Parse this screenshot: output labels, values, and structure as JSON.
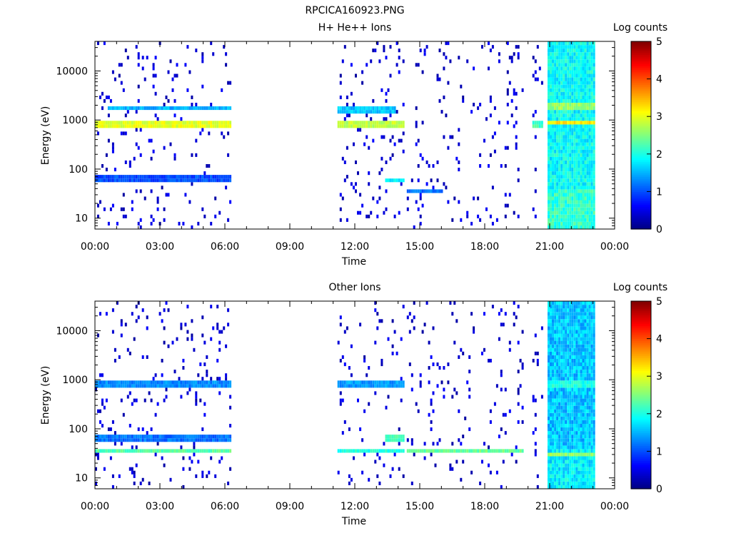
{
  "figure": {
    "title": "RPCICA160923.PNG"
  },
  "chart_data": [
    {
      "type": "heatmap",
      "title": "H+ He++ Ions",
      "xlabel": "Time",
      "ylabel": "Energy (eV)",
      "yscale": "log",
      "ylim": [
        6,
        40000
      ],
      "yticks": [
        10,
        100,
        1000,
        10000
      ],
      "ytick_labels": [
        "10",
        "100",
        "1000",
        "10000"
      ],
      "xlim_hours": [
        0,
        24
      ],
      "xticks_hours": [
        0,
        3,
        6,
        9,
        12,
        15,
        18,
        21,
        24
      ],
      "xtick_labels": [
        "00:00",
        "03:00",
        "06:00",
        "09:00",
        "12:00",
        "15:00",
        "18:00",
        "21:00",
        "00:00"
      ],
      "colorbar": {
        "label": "Log counts",
        "range": [
          0,
          5
        ],
        "ticks": [
          "0",
          "1",
          "2",
          "3",
          "4",
          "5"
        ]
      },
      "data_intervals_hours": [
        [
          0.0,
          6.3
        ],
        [
          11.2,
          14.3
        ],
        [
          14.4,
          19.8
        ],
        [
          20.2,
          20.7
        ],
        [
          20.9,
          23.1
        ]
      ],
      "features": [
        {
          "t": [
            0.0,
            6.3
          ],
          "energy_eV": 800,
          "log_counts": 3.0
        },
        {
          "t": [
            0.5,
            6.3
          ],
          "energy_eV": 1700,
          "log_counts": 1.5
        },
        {
          "t": [
            0.0,
            6.3
          ],
          "energy_eV": 65,
          "log_counts": 1.0
        },
        {
          "t": [
            11.2,
            14.3
          ],
          "energy_eV": 780,
          "log_counts": 2.8
        },
        {
          "t": [
            11.2,
            13.8
          ],
          "energy_eV": 1600,
          "log_counts": 1.6
        },
        {
          "t": [
            13.4,
            14.3
          ],
          "energy_eV": 60,
          "log_counts": 1.8
        },
        {
          "t": [
            14.4,
            16.0
          ],
          "energy_eV": 35,
          "log_counts": 1.2
        },
        {
          "t": [
            20.2,
            20.7
          ],
          "energy_eV": 800,
          "log_counts": 2.2
        },
        {
          "t": [
            20.9,
            23.1
          ],
          "energy_eV": 900,
          "log_counts": 3.2
        },
        {
          "t": [
            20.9,
            23.1
          ],
          "energy_eV": 1800,
          "log_counts": 2.6
        }
      ]
    },
    {
      "type": "heatmap",
      "title": "Other Ions",
      "xlabel": "Time",
      "ylabel": "Energy (eV)",
      "yscale": "log",
      "ylim": [
        6,
        40000
      ],
      "yticks": [
        10,
        100,
        1000,
        10000
      ],
      "ytick_labels": [
        "10",
        "100",
        "1000",
        "10000"
      ],
      "xlim_hours": [
        0,
        24
      ],
      "xticks_hours": [
        0,
        3,
        6,
        9,
        12,
        15,
        18,
        21,
        24
      ],
      "xtick_labels": [
        "00:00",
        "03:00",
        "06:00",
        "09:00",
        "12:00",
        "15:00",
        "18:00",
        "21:00",
        "00:00"
      ],
      "colorbar": {
        "label": "Log counts",
        "range": [
          0,
          5
        ],
        "ticks": [
          "0",
          "1",
          "2",
          "3",
          "4",
          "5"
        ]
      },
      "data_intervals_hours": [
        [
          0.0,
          6.3
        ],
        [
          11.2,
          14.3
        ],
        [
          14.4,
          19.8
        ],
        [
          20.2,
          20.7
        ],
        [
          20.9,
          23.1
        ]
      ],
      "features": [
        {
          "t": [
            0.0,
            6.3
          ],
          "energy_eV": 35,
          "log_counts": 2.3
        },
        {
          "t": [
            0.0,
            6.3
          ],
          "energy_eV": 65,
          "log_counts": 1.2
        },
        {
          "t": [
            0.0,
            6.3
          ],
          "energy_eV": 850,
          "log_counts": 1.3
        },
        {
          "t": [
            11.2,
            14.3
          ],
          "energy_eV": 35,
          "log_counts": 2.0
        },
        {
          "t": [
            11.2,
            14.3
          ],
          "energy_eV": 780,
          "log_counts": 1.4
        },
        {
          "t": [
            13.4,
            14.3
          ],
          "energy_eV": 65,
          "log_counts": 2.2
        },
        {
          "t": [
            14.4,
            19.8
          ],
          "energy_eV": 35,
          "log_counts": 2.4
        },
        {
          "t": [
            20.9,
            23.1
          ],
          "energy_eV": 30,
          "log_counts": 2.6
        },
        {
          "t": [
            20.9,
            23.1
          ],
          "energy_eV": 850,
          "log_counts": 2.0
        }
      ]
    }
  ]
}
